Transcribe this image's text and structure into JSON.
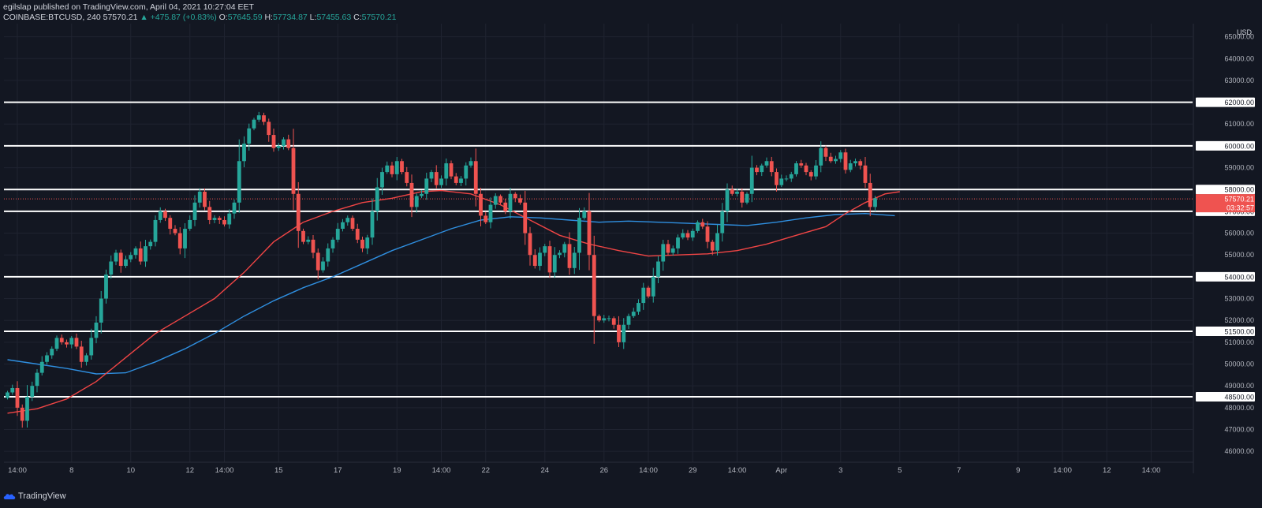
{
  "header": {
    "line1": "egilslap published on TradingView.com, April 04, 2021 10:27:04 EET",
    "symbol": "COINBASE:BTCUSD, 240",
    "price": "57570.21",
    "change": "▲ +475.87 (+0.83%)",
    "o_label": "O:",
    "o_value": "57645.59",
    "h_label": "H:",
    "h_value": "57734.87",
    "l_label": "L:",
    "l_value": "57455.63",
    "c_label": "C:",
    "c_value": "57570.21"
  },
  "footer": {
    "brand": "TradingView"
  },
  "colors": {
    "background": "#131722",
    "grid": "#1f2330",
    "up": "#26a69a",
    "down": "#ef5350",
    "ma_fast": "#f04545",
    "ma_slow": "#2f8fe0",
    "level_line": "#ffffff",
    "text": "#d1d4dc"
  },
  "chart_data": {
    "type": "candlestick",
    "currency_label": "USD",
    "ylim": [
      45500,
      65600
    ],
    "y_ticks": [
      46000,
      47000,
      48000,
      49000,
      50000,
      51000,
      52000,
      53000,
      54000,
      55000,
      56000,
      57000,
      58000,
      59000,
      60000,
      61000,
      62000,
      63000,
      64000,
      65000
    ],
    "y_tick_labels": [
      "46000.00",
      "47000.00",
      "48000.00",
      "49000.00",
      "50000.00",
      "51000.00",
      "52000.00",
      "53000.00",
      "54000.00",
      "55000.00",
      "56000.00",
      "57000.00",
      "58000.00",
      "59000.00",
      "60000.00",
      "61000.00",
      "62000.00",
      "63000.00",
      "64000.00",
      "65000.00"
    ],
    "x_ticks": [
      {
        "label": "14:00",
        "bar": 2
      },
      {
        "label": "8",
        "bar": 13
      },
      {
        "label": "10",
        "bar": 25
      },
      {
        "label": "12",
        "bar": 37
      },
      {
        "label": "14:00",
        "bar": 44
      },
      {
        "label": "15",
        "bar": 55
      },
      {
        "label": "17",
        "bar": 67
      },
      {
        "label": "19",
        "bar": 79
      },
      {
        "label": "14:00",
        "bar": 88
      },
      {
        "label": "22",
        "bar": 97
      },
      {
        "label": "24",
        "bar": 109
      },
      {
        "label": "26",
        "bar": 121
      },
      {
        "label": "14:00",
        "bar": 130
      },
      {
        "label": "29",
        "bar": 139
      },
      {
        "label": "14:00",
        "bar": 148
      },
      {
        "label": "Apr",
        "bar": 157
      },
      {
        "label": "3",
        "bar": 169
      },
      {
        "label": "5",
        "bar": 181
      },
      {
        "label": "7",
        "bar": 193
      },
      {
        "label": "9",
        "bar": 205
      },
      {
        "label": "14:00",
        "bar": 214
      },
      {
        "label": "12",
        "bar": 223
      },
      {
        "label": "14:00",
        "bar": 232
      }
    ],
    "horizontal_levels": [
      62000,
      60000,
      58000,
      57000,
      54000,
      51500,
      48500
    ],
    "horizontal_level_labels": [
      "62000.00",
      "60000.00",
      "58000.00",
      "57000.00",
      "54000.00",
      "51500.00",
      "48500.00"
    ],
    "last_price": 57570.21,
    "last_price_label": "57570.21",
    "countdown": "03:32:57",
    "candles_close": [
      48700,
      48900,
      48000,
      47400,
      48500,
      49000,
      49600,
      50100,
      50400,
      50700,
      51200,
      51000,
      50900,
      51200,
      50800,
      50100,
      50400,
      51200,
      51900,
      53000,
      54100,
      54700,
      55100,
      54500,
      54800,
      55000,
      55300,
      54700,
      55400,
      55600,
      56600,
      57000,
      56700,
      56200,
      56000,
      55300,
      56200,
      56600,
      57400,
      57900,
      57200,
      56600,
      56700,
      56600,
      56400,
      56900,
      57400,
      59300,
      60100,
      60800,
      61200,
      61400,
      61100,
      60500,
      59900,
      60000,
      60300,
      59900,
      57800,
      56100,
      55600,
      55700,
      55100,
      54300,
      54700,
      55300,
      55700,
      56200,
      56500,
      56700,
      56200,
      55700,
      55300,
      55800,
      57000,
      58100,
      58800,
      59100,
      58700,
      59300,
      58800,
      58300,
      57200,
      57700,
      57800,
      58500,
      58800,
      58200,
      58500,
      59200,
      58600,
      58300,
      58500,
      59100,
      59300,
      57800,
      56800,
      56500,
      57300,
      57700,
      57400,
      57000,
      57800,
      57600,
      57400,
      56000,
      55000,
      54500,
      55100,
      55400,
      54200,
      55000,
      55100,
      55500,
      54400,
      55100,
      56700,
      57000,
      55000,
      52200,
      52000,
      52100,
      52100,
      51800,
      51000,
      51800,
      52200,
      52400,
      52800,
      53500,
      53100,
      54000,
      54700,
      55500,
      55100,
      55300,
      55800,
      56000,
      55800,
      56100,
      56500,
      56300,
      55600,
      55200,
      56000,
      57000,
      58000,
      57800,
      57900,
      57400,
      57800,
      59000,
      58800,
      59100,
      59300,
      58800,
      58200,
      58500,
      58500,
      58700,
      59200,
      59100,
      58800,
      58600,
      59100,
      59900,
      59500,
      59300,
      59400,
      59700,
      58900,
      59200,
      59300,
      59100,
      58300,
      57200,
      57600
    ],
    "ma_fast": [
      [
        0,
        47750
      ],
      [
        6,
        47950
      ],
      [
        12,
        48400
      ],
      [
        18,
        49200
      ],
      [
        24,
        50300
      ],
      [
        30,
        51400
      ],
      [
        36,
        52200
      ],
      [
        42,
        53000
      ],
      [
        48,
        54200
      ],
      [
        54,
        55600
      ],
      [
        60,
        56500
      ],
      [
        66,
        57000
      ],
      [
        72,
        57400
      ],
      [
        78,
        57600
      ],
      [
        84,
        57900
      ],
      [
        88,
        57950
      ],
      [
        94,
        57800
      ],
      [
        100,
        57300
      ],
      [
        106,
        56600
      ],
      [
        112,
        55900
      ],
      [
        118,
        55500
      ],
      [
        124,
        55200
      ],
      [
        130,
        54950
      ],
      [
        136,
        55000
      ],
      [
        142,
        55050
      ],
      [
        148,
        55200
      ],
      [
        154,
        55500
      ],
      [
        160,
        55900
      ],
      [
        166,
        56300
      ],
      [
        170,
        56900
      ],
      [
        174,
        57400
      ],
      [
        178,
        57800
      ],
      [
        181,
        57900
      ]
    ],
    "ma_slow": [
      [
        0,
        50200
      ],
      [
        6,
        50000
      ],
      [
        12,
        49800
      ],
      [
        18,
        49550
      ],
      [
        24,
        49600
      ],
      [
        30,
        50100
      ],
      [
        36,
        50700
      ],
      [
        42,
        51400
      ],
      [
        48,
        52200
      ],
      [
        54,
        52900
      ],
      [
        60,
        53500
      ],
      [
        66,
        54000
      ],
      [
        72,
        54600
      ],
      [
        78,
        55200
      ],
      [
        84,
        55700
      ],
      [
        90,
        56200
      ],
      [
        96,
        56600
      ],
      [
        102,
        56750
      ],
      [
        108,
        56700
      ],
      [
        114,
        56600
      ],
      [
        120,
        56500
      ],
      [
        126,
        56550
      ],
      [
        132,
        56500
      ],
      [
        138,
        56450
      ],
      [
        144,
        56400
      ],
      [
        150,
        56350
      ],
      [
        156,
        56500
      ],
      [
        162,
        56700
      ],
      [
        168,
        56850
      ],
      [
        174,
        56900
      ],
      [
        180,
        56800
      ]
    ]
  }
}
